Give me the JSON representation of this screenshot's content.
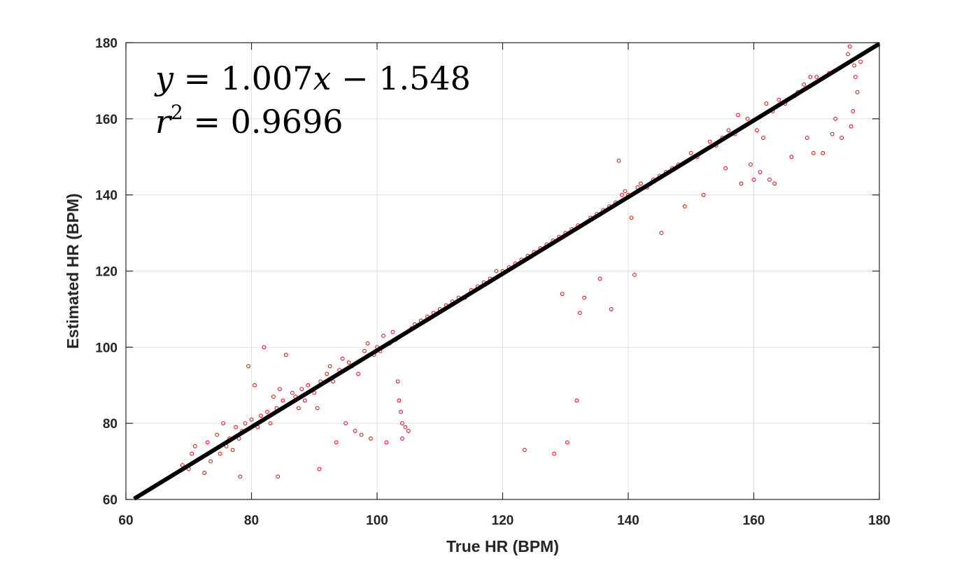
{
  "chart_data": {
    "type": "scatter",
    "xlabel": "True HR (BPM)",
    "ylabel": "Estimated HR (BPM)",
    "xlim": [
      60,
      180
    ],
    "ylim": [
      60,
      180
    ],
    "xticks": [
      60,
      80,
      100,
      120,
      140,
      160,
      180
    ],
    "yticks": [
      60,
      80,
      100,
      120,
      140,
      160,
      180
    ],
    "grid": true,
    "annotations": {
      "equation_lhs": "y",
      "equation_rhs_a": " = 1.007",
      "equation_var": "x",
      "equation_rhs_b": " − 1.548",
      "r2_var": "r",
      "r2_exp": "2",
      "r2_value": " = 0.9696"
    },
    "fit_line": {
      "slope": 1.007,
      "intercept": -1.548,
      "x_range": [
        61.3,
        180
      ],
      "color": "#000000"
    },
    "marker_color": "#ff0000",
    "points": [
      [
        69,
        69
      ],
      [
        70,
        68
      ],
      [
        70.5,
        72
      ],
      [
        71,
        74
      ],
      [
        72,
        71
      ],
      [
        72.5,
        67
      ],
      [
        73,
        75
      ],
      [
        73.5,
        70
      ],
      [
        74,
        73
      ],
      [
        74.5,
        77
      ],
      [
        75,
        72
      ],
      [
        75.5,
        80
      ],
      [
        76,
        74
      ],
      [
        76.5,
        76
      ],
      [
        77,
        73
      ],
      [
        77.5,
        79
      ],
      [
        78,
        76
      ],
      [
        78.2,
        66
      ],
      [
        78.5,
        78
      ],
      [
        79,
        80
      ],
      [
        79.5,
        95
      ],
      [
        80,
        81
      ],
      [
        80.5,
        90
      ],
      [
        81,
        79
      ],
      [
        81.5,
        82
      ],
      [
        82,
        100
      ],
      [
        82.5,
        83
      ],
      [
        83,
        80
      ],
      [
        83.5,
        87
      ],
      [
        84,
        84
      ],
      [
        84.2,
        66
      ],
      [
        84.5,
        89
      ],
      [
        85,
        86
      ],
      [
        85.5,
        98
      ],
      [
        86,
        85
      ],
      [
        86.5,
        88
      ],
      [
        87,
        87
      ],
      [
        87.5,
        84
      ],
      [
        88,
        89
      ],
      [
        88.5,
        86
      ],
      [
        89,
        90
      ],
      [
        90,
        88
      ],
      [
        90.5,
        84
      ],
      [
        90.8,
        68
      ],
      [
        91,
        91
      ],
      [
        92,
        93
      ],
      [
        92.5,
        95
      ],
      [
        93,
        91
      ],
      [
        93.5,
        75
      ],
      [
        94,
        94
      ],
      [
        94.5,
        97
      ],
      [
        95,
        80
      ],
      [
        95.5,
        96
      ],
      [
        96,
        95
      ],
      [
        96.5,
        78
      ],
      [
        97,
        93
      ],
      [
        97.5,
        77
      ],
      [
        98,
        99
      ],
      [
        98.5,
        101
      ],
      [
        99,
        76
      ],
      [
        99.5,
        98
      ],
      [
        100,
        100
      ],
      [
        100.5,
        99
      ],
      [
        101,
        103
      ],
      [
        101.5,
        75
      ],
      [
        102,
        101
      ],
      [
        102.5,
        104
      ],
      [
        103,
        102
      ],
      [
        103.3,
        91
      ],
      [
        103.5,
        86
      ],
      [
        103.8,
        83
      ],
      [
        104,
        80
      ],
      [
        104,
        76
      ],
      [
        104.5,
        79
      ],
      [
        105,
        78
      ],
      [
        105.5,
        105
      ],
      [
        106,
        106
      ],
      [
        107,
        107
      ],
      [
        108,
        108
      ],
      [
        109,
        109
      ],
      [
        110,
        110
      ],
      [
        111,
        111
      ],
      [
        112,
        112
      ],
      [
        113,
        113
      ],
      [
        114,
        113
      ],
      [
        115,
        115
      ],
      [
        116,
        116
      ],
      [
        117,
        117
      ],
      [
        118,
        118
      ],
      [
        119,
        120
      ],
      [
        120,
        120
      ],
      [
        121,
        121
      ],
      [
        122,
        122
      ],
      [
        123,
        123
      ],
      [
        123.5,
        73
      ],
      [
        124,
        124
      ],
      [
        125,
        125
      ],
      [
        126,
        126
      ],
      [
        127,
        127
      ],
      [
        128,
        128
      ],
      [
        128.2,
        72
      ],
      [
        129,
        129
      ],
      [
        129.5,
        114
      ],
      [
        130,
        130
      ],
      [
        130.3,
        75
      ],
      [
        131,
        131
      ],
      [
        131.8,
        86
      ],
      [
        132,
        132
      ],
      [
        132.3,
        109
      ],
      [
        133,
        113
      ],
      [
        133.5,
        133
      ],
      [
        134,
        134
      ],
      [
        135,
        135
      ],
      [
        135.5,
        118
      ],
      [
        136,
        136
      ],
      [
        137,
        137
      ],
      [
        137.3,
        110
      ],
      [
        138,
        138
      ],
      [
        138.5,
        149
      ],
      [
        139,
        140
      ],
      [
        139.5,
        141
      ],
      [
        140,
        140
      ],
      [
        140.5,
        134
      ],
      [
        141,
        119
      ],
      [
        141.5,
        142
      ],
      [
        142,
        143
      ],
      [
        143,
        142
      ],
      [
        144,
        144
      ],
      [
        145,
        145
      ],
      [
        145.3,
        130
      ],
      [
        146,
        146
      ],
      [
        147,
        147
      ],
      [
        148,
        148
      ],
      [
        149,
        137
      ],
      [
        150,
        151
      ],
      [
        151,
        150
      ],
      [
        152,
        140
      ],
      [
        153,
        154
      ],
      [
        154,
        153
      ],
      [
        155,
        155
      ],
      [
        155.5,
        147
      ],
      [
        156,
        157
      ],
      [
        157,
        156
      ],
      [
        157.5,
        161
      ],
      [
        158,
        143
      ],
      [
        158.5,
        158
      ],
      [
        159,
        160
      ],
      [
        159.5,
        148
      ],
      [
        160,
        144
      ],
      [
        160.5,
        157
      ],
      [
        161,
        146
      ],
      [
        161.5,
        155
      ],
      [
        162,
        164
      ],
      [
        162.5,
        144
      ],
      [
        163,
        162
      ],
      [
        163.3,
        143
      ],
      [
        164,
        165
      ],
      [
        165,
        164
      ],
      [
        166,
        150
      ],
      [
        166.5,
        166
      ],
      [
        167,
        167
      ],
      [
        168,
        169
      ],
      [
        168.5,
        155
      ],
      [
        169,
        171
      ],
      [
        169.5,
        151
      ],
      [
        170,
        171
      ],
      [
        171,
        151
      ],
      [
        172,
        172
      ],
      [
        172.5,
        156
      ],
      [
        173,
        160
      ],
      [
        174,
        155
      ],
      [
        175,
        177
      ],
      [
        175.5,
        158
      ],
      [
        175.8,
        162
      ],
      [
        176,
        174
      ],
      [
        176.5,
        167
      ],
      [
        177,
        175
      ],
      [
        175.3,
        179
      ],
      [
        176.2,
        171
      ]
    ]
  }
}
